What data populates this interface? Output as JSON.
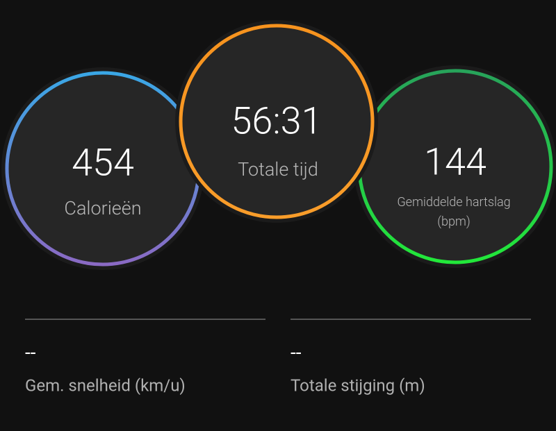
{
  "summary": {
    "circles": [
      {
        "value": "454",
        "label_lines": [
          "Calorieën"
        ]
      },
      {
        "value": "56:31",
        "label_lines": [
          "Totale tijd"
        ]
      },
      {
        "value": "144",
        "label_lines": [
          "Gemiddelde hartslag",
          "(bpm)"
        ]
      }
    ],
    "stats": [
      {
        "value": "--",
        "label": "Gem. snelheid (km/u)"
      },
      {
        "value": "--",
        "label": "Totale stijging (m)"
      }
    ]
  }
}
